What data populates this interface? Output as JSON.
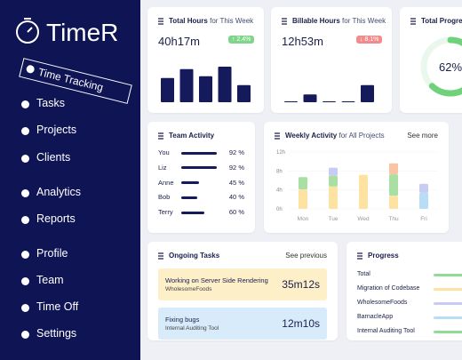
{
  "sidebar": {
    "logo": "TimeR",
    "nav": [
      "Time Tracking",
      "Tasks",
      "Projects",
      "Clients",
      "Analytics",
      "Reports",
      "Profile",
      "Team",
      "Time Off",
      "Settings"
    ],
    "active": 0
  },
  "cards": {
    "total_hours": {
      "title": "Total Hours",
      "title_suffix": "for This Week",
      "value": "40h17m",
      "badge": "↑ 2.4%",
      "badge_color": "#7fd68b",
      "bars": {
        "type": "bar",
        "values": [
          6.8,
          9.3,
          7.3,
          10,
          4.8
        ],
        "ylim": [
          0,
          10
        ],
        "color": "#141a5c"
      }
    },
    "billable_hours": {
      "title": "Billable Hours",
      "title_suffix": "for This Week",
      "value": "12h53m",
      "badge": "↓ 8.1%",
      "badge_color": "#f28c8c",
      "bars": {
        "type": "bar",
        "values": [
          0,
          2.2,
          0,
          0,
          4.8
        ],
        "ylim": [
          0,
          10
        ],
        "color": "#141a5c"
      }
    },
    "total_progress": {
      "title": "Total Progress",
      "value": 62,
      "value_label": "62%",
      "color": "#6fd27a"
    },
    "team_activity": {
      "title": "Team Activity",
      "color": "#141a5c",
      "rows": [
        {
          "name": "You",
          "value": 92,
          "value_label": "92 %"
        },
        {
          "name": "Liz",
          "value": 92,
          "value_label": "92 %"
        },
        {
          "name": "Anne",
          "value": 45,
          "value_label": "45 %"
        },
        {
          "name": "Bob",
          "value": 40,
          "value_label": "40 %"
        },
        {
          "name": "Terry",
          "value": 60,
          "value_label": "60 %"
        }
      ]
    },
    "weekly_activity": {
      "title": "Weekly Activity",
      "title_suffix": "for All Projects",
      "link": "See more",
      "chart_data": {
        "type": "bar",
        "stacked": true,
        "categories": [
          "Mon",
          "Tue",
          "Wed",
          "Thu",
          "Fri"
        ],
        "series": [
          {
            "color": "#fde2a1",
            "values": [
              4.1,
              4.7,
              7.2,
              2.8,
              0
            ]
          },
          {
            "color": "#a9dfa2",
            "values": [
              2.6,
              2.3,
              0,
              4.5,
              0
            ]
          },
          {
            "color": "#b8ddf7",
            "values": [
              0,
              0,
              0,
              0,
              3.4
            ]
          },
          {
            "color": "#c8ccf5",
            "values": [
              0,
              1.7,
              0,
              0,
              1.9
            ]
          },
          {
            "color": "#f8c4a4",
            "values": [
              0,
              0,
              0,
              2.3,
              0
            ]
          }
        ],
        "ylim": [
          0,
          12
        ],
        "yticks": [
          {
            "value": 0,
            "label": "0h"
          },
          {
            "value": 4,
            "label": "4h"
          },
          {
            "value": 8,
            "label": "8h"
          },
          {
            "value": 12,
            "label": "12h"
          }
        ],
        "grid": true
      }
    },
    "ongoing_tasks": {
      "title": "Ongoing Tasks",
      "link": "See previous",
      "tasks": [
        {
          "title": "Working on Server Side Rendering",
          "project": "WholesomeFoods",
          "time": "35m12s",
          "color": "#fdefc8"
        },
        {
          "title": "Fixing bugs",
          "project": "Internal Auditing Tool",
          "time": "12m10s",
          "color": "#d8ebfa"
        }
      ]
    },
    "progress": {
      "title": "Progress",
      "items": [
        {
          "name": "Total",
          "color": "#8fdc97"
        },
        {
          "name": "Migration of Codebase",
          "color": "#fde2a1"
        },
        {
          "name": "WholesomeFoods",
          "color": "#c8ccf5"
        },
        {
          "name": "BarnacleApp",
          "color": "#b8ddf7"
        },
        {
          "name": "Internal Auditing Tool",
          "color": "#8fdc97"
        }
      ]
    }
  }
}
